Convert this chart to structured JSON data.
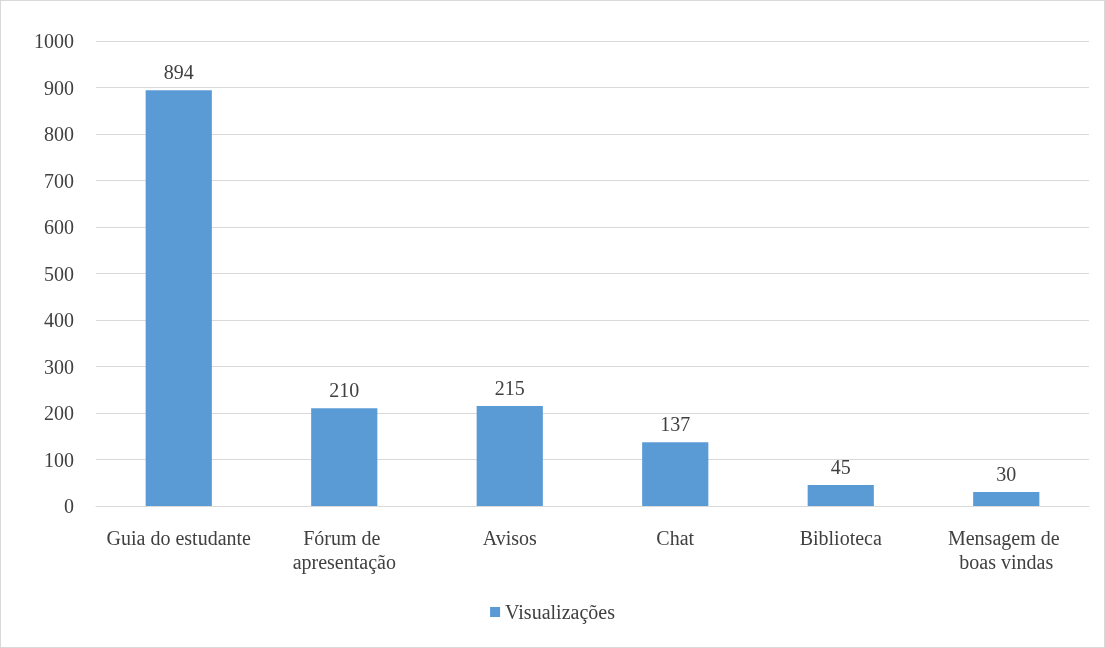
{
  "chart_data": {
    "type": "bar",
    "categories": [
      "Guia do estudante",
      "Fórum de apresentação",
      "Avisos",
      "Chat",
      "Biblioteca",
      "Mensagem de boas vindas"
    ],
    "series": [
      {
        "name": "Visualizações",
        "color": "#5b9bd5",
        "values": [
          894,
          210,
          215,
          137,
          45,
          30
        ]
      }
    ],
    "ylim": [
      0,
      1000
    ],
    "yticks": [
      0,
      100,
      200,
      300,
      400,
      500,
      600,
      700,
      800,
      900,
      1000
    ],
    "grid": "y",
    "legend": "bottom",
    "data_labels": true
  }
}
